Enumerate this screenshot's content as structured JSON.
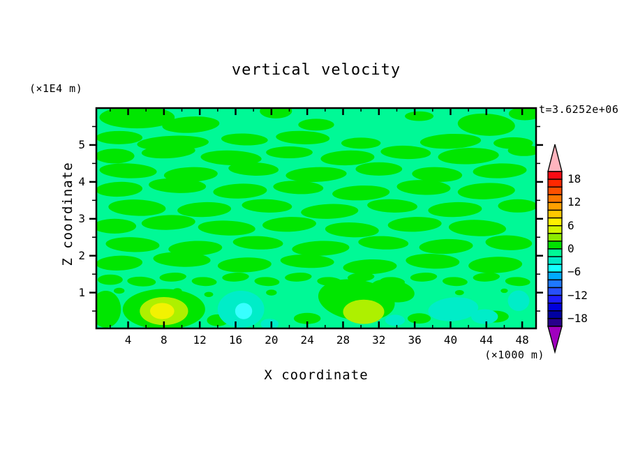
{
  "title": "vertical velocity",
  "annotations": {
    "time": "t=3.6252e+06",
    "y_unit": "(×1E4 m)",
    "x_unit": "(×1000 m)"
  },
  "axes": {
    "x": {
      "label": "X coordinate",
      "major_ticks": [
        4,
        8,
        12,
        16,
        20,
        24,
        28,
        32,
        36,
        40,
        44,
        48
      ],
      "minor_ticks": [
        2,
        6,
        10,
        14,
        18,
        22,
        26,
        30,
        34,
        38,
        42,
        46
      ],
      "range": [
        0.45,
        49.55
      ]
    },
    "z": {
      "label": "Z coordinate",
      "major_ticks": [
        5,
        4,
        3,
        2,
        1
      ],
      "minor_ticks": [
        5.5,
        4.5,
        3.5,
        2.5,
        1.5,
        0.5
      ],
      "range": [
        0.03,
        6.0
      ]
    }
  },
  "colorbar": {
    "labels": [
      "18",
      "12",
      "6",
      "0",
      "−6",
      "−12",
      "−18"
    ],
    "label_boundaries": [
      1,
      4,
      7,
      10,
      13,
      16,
      19
    ],
    "level_step": 2,
    "level_max": 20,
    "level_min": -20,
    "segments": [
      "#fa0a14",
      "#ff2800",
      "#ff5000",
      "#ff7800",
      "#ffa000",
      "#ffc800",
      "#fff000",
      "#d2f500",
      "#8ceb00",
      "#00e100",
      "#00fa96",
      "#00ebc8",
      "#14ffff",
      "#00aaff",
      "#1e78ff",
      "#2850fa",
      "#1e1eff",
      "#0000dc",
      "#0000a0",
      "#28008c"
    ],
    "over_color": "#ffb4be",
    "under_color": "#a000be"
  },
  "chart_data": {
    "type": "heatmap",
    "title": "vertical velocity",
    "xlabel": "X coordinate (×1000 m)",
    "ylabel": "Z coordinate (×1E4 m)",
    "x_range": [
      0.45,
      49.55
    ],
    "z_range": [
      0.03,
      6.0
    ],
    "contour_levels": "every 2 from -20 to 20",
    "background": {
      "level": "-2 to 0",
      "color": "#00f996"
    },
    "layers": [
      {
        "name": "green-streaks",
        "level": "0 to 2",
        "color": "#00e600",
        "ellipses": [
          [
            5,
            5.75,
            4.2,
            0.3,
            0
          ],
          [
            11,
            5.55,
            3.2,
            0.22,
            -3
          ],
          [
            20.5,
            5.92,
            1.8,
            0.2,
            0
          ],
          [
            25,
            5.55,
            2.0,
            0.16,
            0
          ],
          [
            36.5,
            5.78,
            1.6,
            0.13,
            0
          ],
          [
            44,
            5.55,
            3.2,
            0.3,
            3
          ],
          [
            48.3,
            5.85,
            1.8,
            0.18,
            0
          ],
          [
            3,
            5.2,
            2.6,
            0.18,
            0
          ],
          [
            9,
            5.05,
            4.0,
            0.2,
            -2
          ],
          [
            17,
            5.15,
            2.6,
            0.16,
            2
          ],
          [
            23.5,
            5.2,
            3.0,
            0.18,
            2
          ],
          [
            30,
            5.05,
            2.2,
            0.15,
            0
          ],
          [
            40,
            5.1,
            3.4,
            0.2,
            -2
          ],
          [
            47,
            5.05,
            2.2,
            0.16,
            0
          ],
          [
            2.5,
            4.7,
            2.2,
            0.2,
            0
          ],
          [
            8.5,
            4.82,
            3.0,
            0.18,
            -3
          ],
          [
            15.5,
            4.65,
            3.4,
            0.2,
            2
          ],
          [
            22,
            4.8,
            2.6,
            0.16,
            0
          ],
          [
            28.5,
            4.65,
            3.0,
            0.2,
            -2
          ],
          [
            35,
            4.8,
            2.8,
            0.18,
            2
          ],
          [
            42,
            4.7,
            3.4,
            0.22,
            -2
          ],
          [
            48.2,
            4.85,
            1.8,
            0.15,
            0
          ],
          [
            4,
            4.3,
            3.2,
            0.2,
            2
          ],
          [
            11,
            4.2,
            3.0,
            0.2,
            -2
          ],
          [
            18,
            4.35,
            2.8,
            0.18,
            2
          ],
          [
            25,
            4.2,
            3.4,
            0.2,
            -2
          ],
          [
            32,
            4.35,
            2.6,
            0.18,
            0
          ],
          [
            38.5,
            4.2,
            2.8,
            0.2,
            2
          ],
          [
            45.5,
            4.3,
            3.0,
            0.2,
            -2
          ],
          [
            3,
            3.8,
            2.6,
            0.2,
            -2
          ],
          [
            9.5,
            3.9,
            3.2,
            0.2,
            2
          ],
          [
            16.5,
            3.75,
            3.0,
            0.2,
            -2
          ],
          [
            23,
            3.85,
            2.8,
            0.18,
            2
          ],
          [
            30,
            3.7,
            3.2,
            0.2,
            -2
          ],
          [
            37,
            3.85,
            3.0,
            0.2,
            2
          ],
          [
            44,
            3.75,
            3.2,
            0.22,
            -2
          ],
          [
            5,
            3.3,
            3.2,
            0.22,
            2
          ],
          [
            12.5,
            3.25,
            3.0,
            0.2,
            -2
          ],
          [
            19.5,
            3.35,
            2.8,
            0.18,
            2
          ],
          [
            26.5,
            3.2,
            3.2,
            0.2,
            -2
          ],
          [
            33.5,
            3.35,
            2.8,
            0.18,
            2
          ],
          [
            40.5,
            3.25,
            3.0,
            0.2,
            -2
          ],
          [
            47.5,
            3.35,
            2.2,
            0.18,
            0
          ],
          [
            2.5,
            2.8,
            2.4,
            0.2,
            0
          ],
          [
            8.5,
            2.9,
            3.0,
            0.2,
            -2
          ],
          [
            15,
            2.75,
            3.2,
            0.2,
            2
          ],
          [
            22,
            2.85,
            3.0,
            0.2,
            -2
          ],
          [
            29,
            2.7,
            3.0,
            0.2,
            2
          ],
          [
            36,
            2.85,
            3.0,
            0.2,
            -2
          ],
          [
            43,
            2.75,
            3.2,
            0.22,
            2
          ],
          [
            4.5,
            2.3,
            3.0,
            0.2,
            2
          ],
          [
            11.5,
            2.2,
            3.0,
            0.2,
            -2
          ],
          [
            18.5,
            2.35,
            2.8,
            0.18,
            2
          ],
          [
            25.5,
            2.2,
            3.2,
            0.2,
            -2
          ],
          [
            32.5,
            2.35,
            2.8,
            0.18,
            2
          ],
          [
            39.5,
            2.25,
            3.0,
            0.2,
            -2
          ],
          [
            46.5,
            2.35,
            2.6,
            0.2,
            2
          ],
          [
            3,
            1.8,
            2.6,
            0.2,
            -2
          ],
          [
            10,
            1.9,
            3.2,
            0.2,
            2
          ],
          [
            17,
            1.75,
            3.0,
            0.2,
            -2
          ],
          [
            24,
            1.85,
            3.0,
            0.18,
            2
          ],
          [
            31,
            1.7,
            3.0,
            0.2,
            -2
          ],
          [
            38,
            1.85,
            3.0,
            0.2,
            2
          ],
          [
            45,
            1.75,
            3.0,
            0.22,
            -2
          ],
          [
            2,
            1.35,
            1.4,
            0.14,
            0
          ],
          [
            5.5,
            1.3,
            1.6,
            0.13,
            3
          ],
          [
            9,
            1.42,
            1.5,
            0.12,
            -3
          ],
          [
            12.5,
            1.3,
            1.4,
            0.12,
            3
          ],
          [
            16,
            1.42,
            1.5,
            0.12,
            -3
          ],
          [
            19.5,
            1.3,
            1.4,
            0.12,
            3
          ],
          [
            23,
            1.42,
            1.5,
            0.12,
            -3
          ],
          [
            26.5,
            1.3,
            1.4,
            0.12,
            3
          ],
          [
            30,
            1.42,
            1.5,
            0.12,
            -3
          ],
          [
            33.5,
            1.3,
            1.4,
            0.12,
            3
          ],
          [
            37,
            1.42,
            1.5,
            0.12,
            -3
          ],
          [
            40.5,
            1.3,
            1.4,
            0.12,
            3
          ],
          [
            44,
            1.42,
            1.5,
            0.12,
            -3
          ],
          [
            47.5,
            1.3,
            1.4,
            0.12,
            3
          ],
          [
            3,
            1.05,
            0.6,
            0.08,
            0
          ],
          [
            6.2,
            0.95,
            0.7,
            0.08,
            0
          ],
          [
            9.5,
            1.05,
            0.5,
            0.07,
            0
          ],
          [
            13,
            0.95,
            0.5,
            0.07,
            0
          ],
          [
            20,
            1.0,
            0.6,
            0.08,
            0
          ],
          [
            27,
            1.05,
            0.5,
            0.07,
            0
          ],
          [
            34,
            0.95,
            0.5,
            0.07,
            0
          ],
          [
            41,
            1.0,
            0.5,
            0.07,
            0
          ],
          [
            46,
            1.05,
            0.4,
            0.06,
            0
          ],
          [
            1.5,
            0.55,
            1.7,
            0.5,
            0
          ],
          [
            8,
            0.55,
            4.6,
            0.55,
            0
          ],
          [
            29.5,
            0.8,
            4.3,
            0.55,
            8
          ],
          [
            33.5,
            1.05,
            2.5,
            0.3,
            10
          ],
          [
            14,
            0.25,
            1.2,
            0.16,
            0
          ],
          [
            24,
            0.3,
            1.5,
            0.15,
            0
          ],
          [
            36.5,
            0.3,
            1.3,
            0.14,
            0
          ],
          [
            45,
            0.35,
            1.5,
            0.16,
            0
          ]
        ]
      },
      {
        "name": "chartreuse-cores",
        "level": "4 to 6",
        "color": "#aef000",
        "ellipses": [
          [
            8,
            0.5,
            2.7,
            0.38,
            0
          ],
          [
            30.3,
            0.48,
            2.3,
            0.33,
            0
          ]
        ]
      },
      {
        "name": "yellow-core",
        "level": "6 to 8",
        "color": "#f2f202",
        "ellipses": [
          [
            7.8,
            0.5,
            1.35,
            0.22,
            0
          ]
        ]
      },
      {
        "name": "turquoise-blobs",
        "level": "-4 to -2",
        "color": "#00edc8",
        "ellipses": [
          [
            16.6,
            0.55,
            2.6,
            0.5,
            0
          ],
          [
            40.3,
            0.55,
            2.8,
            0.32,
            -5
          ],
          [
            47.6,
            0.78,
            1.2,
            0.28,
            0
          ],
          [
            43.8,
            0.35,
            1.5,
            0.2,
            0
          ],
          [
            19.8,
            0.15,
            1.0,
            0.14,
            0
          ],
          [
            33.8,
            0.25,
            1.1,
            0.15,
            0
          ]
        ]
      },
      {
        "name": "cyan-core",
        "level": "-6 to -4",
        "color": "#38ffff",
        "ellipses": [
          [
            16.9,
            0.5,
            0.95,
            0.22,
            0
          ]
        ]
      }
    ]
  }
}
